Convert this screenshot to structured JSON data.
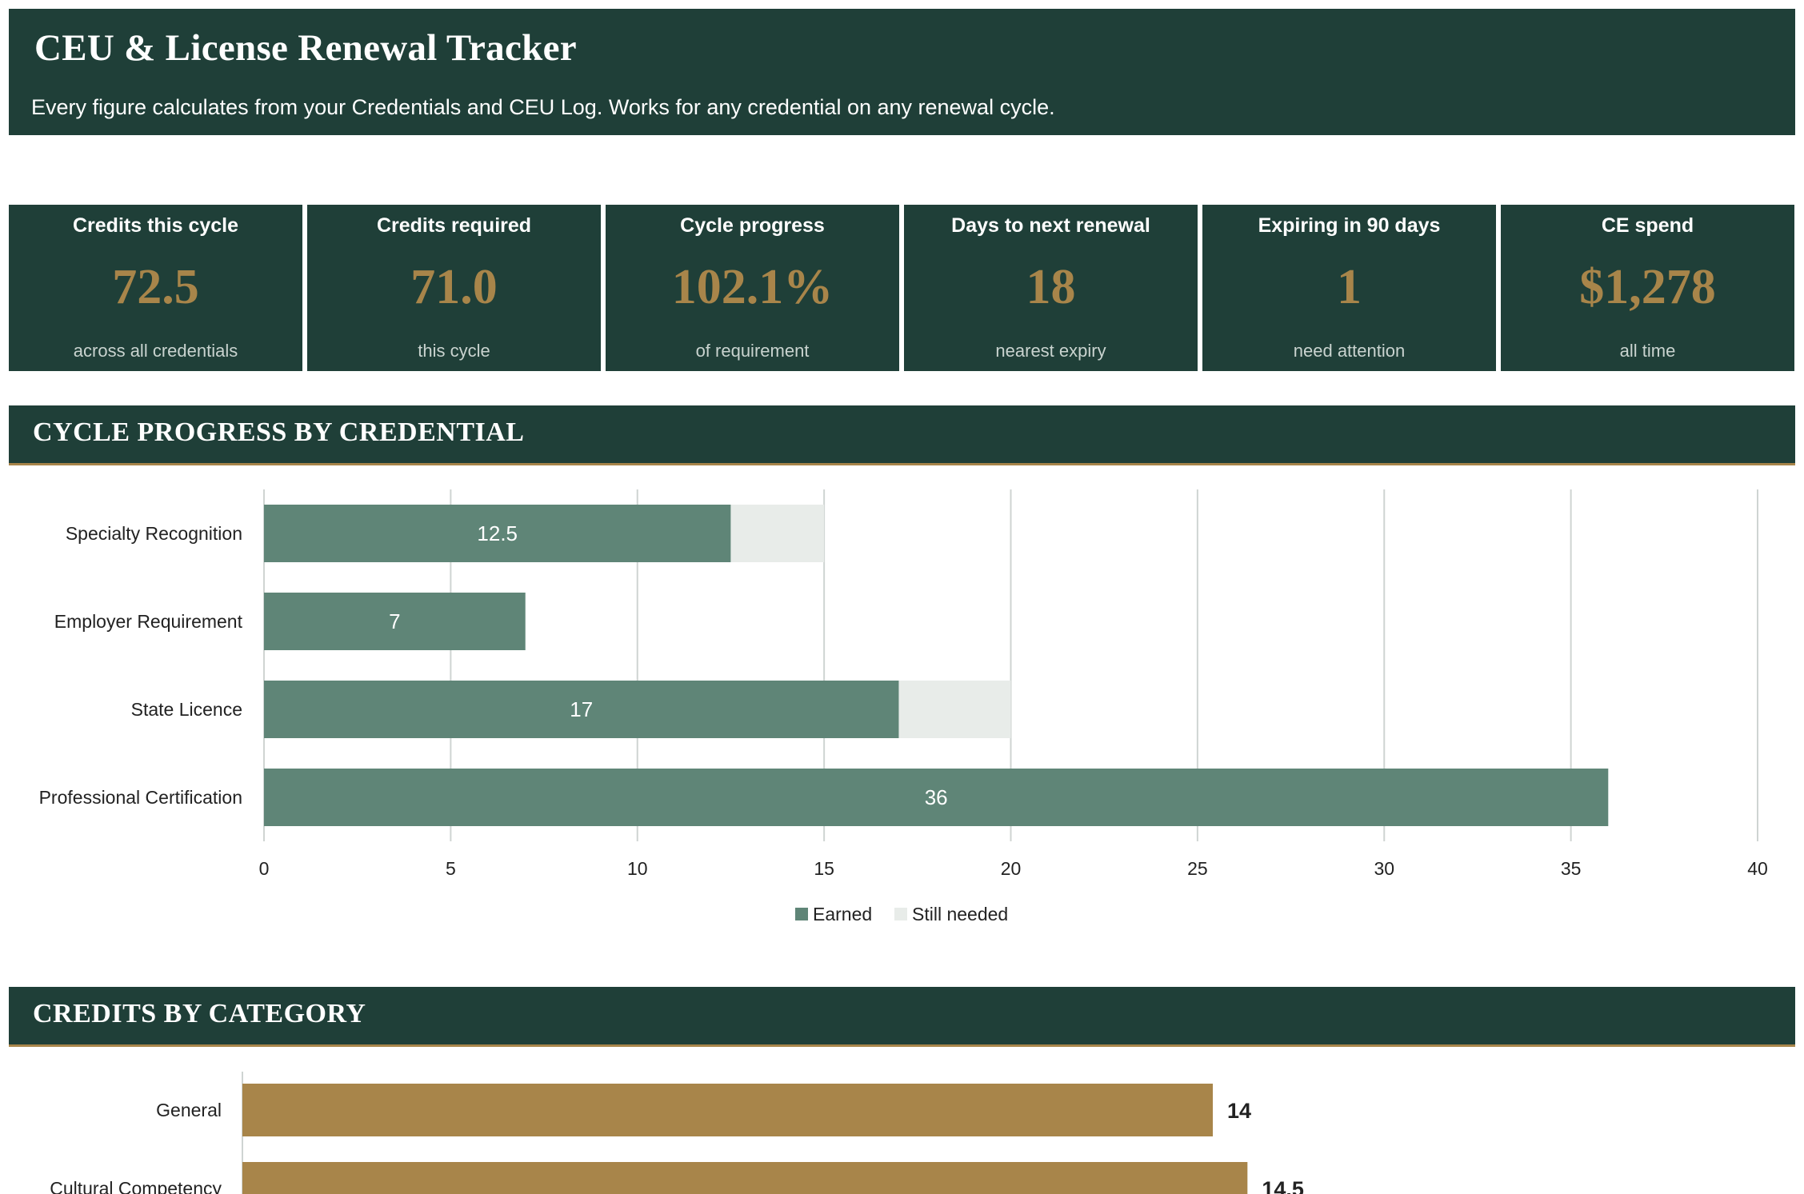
{
  "header": {
    "title": "CEU & License Renewal Tracker",
    "subtitle": "Every figure calculates from your Credentials and CEU Log. Works for any credential on any renewal cycle."
  },
  "kpis": [
    {
      "label": "Credits this cycle",
      "value": "72.5",
      "sub": "across all credentials"
    },
    {
      "label": "Credits required",
      "value": "71.0",
      "sub": "this cycle"
    },
    {
      "label": "Cycle progress",
      "value": "102.1%",
      "sub": "of requirement"
    },
    {
      "label": "Days to next renewal",
      "value": "18",
      "sub": "nearest expiry"
    },
    {
      "label": "Expiring in 90 days",
      "value": "1",
      "sub": "need attention"
    },
    {
      "label": "CE spend",
      "value": "$1,278",
      "sub": "all time"
    }
  ],
  "sections": {
    "progress_title": "CYCLE PROGRESS BY CREDENTIAL",
    "category_title": "CREDITS BY CATEGORY"
  },
  "colors": {
    "dark_green": "#1f3f38",
    "gold": "#a8854a",
    "earned": "#5f8577",
    "still_needed": "#e8ece9"
  },
  "chart_data": [
    {
      "type": "bar",
      "orientation": "horizontal",
      "stacked": true,
      "categories": [
        "Specialty Recognition",
        "Employer Requirement",
        "State Licence",
        "Professional Certification"
      ],
      "series": [
        {
          "name": "Earned",
          "values": [
            12.5,
            7,
            17,
            36
          ],
          "labels": [
            "12.5",
            "7",
            "17",
            "36"
          ]
        },
        {
          "name": "Still needed",
          "values": [
            2.5,
            0,
            3,
            0
          ]
        }
      ],
      "xlim": [
        0,
        40
      ],
      "xticks": [
        "0",
        "5",
        "10",
        "15",
        "20",
        "25",
        "30",
        "35",
        "40"
      ],
      "grid": true,
      "legend": "bottom"
    },
    {
      "type": "bar",
      "orientation": "horizontal",
      "categories": [
        "General",
        "Cultural Competency"
      ],
      "series": [
        {
          "values": [
            14,
            14.5
          ],
          "labels": [
            "14",
            "14.5"
          ]
        }
      ],
      "grid": false
    }
  ]
}
